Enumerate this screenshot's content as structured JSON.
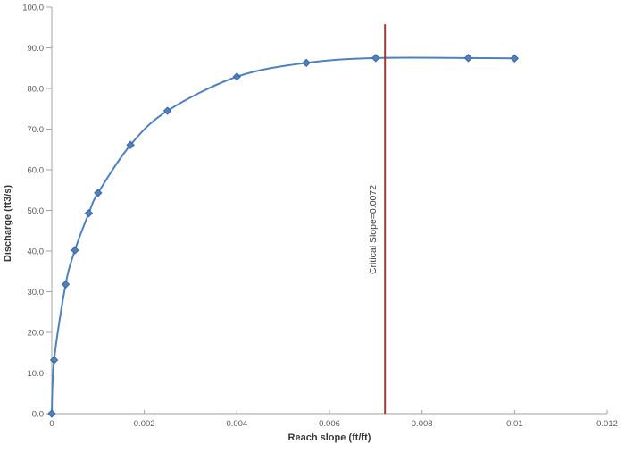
{
  "chart_data": {
    "type": "line",
    "title": "",
    "xlabel": "Reach slope (ft/ft)",
    "ylabel": "Discharge (ft3/s)",
    "x": [
      0,
      5e-05,
      0.0003,
      0.0005,
      0.0008,
      0.001,
      0.0017,
      0.0025,
      0.004,
      0.0055,
      0.007,
      0.009,
      0.01
    ],
    "series": [
      {
        "name": "Discharge",
        "values": [
          0.0,
          13.2,
          31.8,
          40.2,
          49.3,
          54.3,
          66.1,
          74.5,
          82.9,
          86.3,
          87.5,
          87.5,
          87.4
        ]
      }
    ],
    "xlim": [
      0,
      0.012
    ],
    "ylim": [
      0,
      100
    ],
    "x_tick_values": [
      0,
      0.002,
      0.004,
      0.006,
      0.008,
      0.01,
      0.012
    ],
    "x_tick_labels": [
      "0",
      "0.002",
      "0.004",
      "0.006",
      "0.008",
      "0.01",
      "0.012"
    ],
    "y_tick_values": [
      0,
      10,
      20,
      30,
      40,
      50,
      60,
      70,
      80,
      90,
      100
    ],
    "y_tick_labels": [
      "0.0",
      "10.0",
      "20.0",
      "30.0",
      "40.0",
      "50.0",
      "60.0",
      "70.0",
      "80.0",
      "90.0",
      "100.0"
    ],
    "grid": false,
    "legend": false,
    "marker": "diamond",
    "annotation": {
      "label": "Critical Slope=0.0072",
      "x": 0.0072,
      "y_bottom": 0,
      "y_top": 95.8
    },
    "colors": {
      "line": "#4F81BD",
      "marker_fill": "#4F81BD",
      "marker_edge": "#3A679D",
      "critical_line": "#9E3B38",
      "axis": "#A3A3A3",
      "tick": "#A3A3A3",
      "tick_label": "#595959",
      "axis_title": "#383838",
      "annotation_text": "#404040",
      "background": "#FFFFFF"
    }
  }
}
